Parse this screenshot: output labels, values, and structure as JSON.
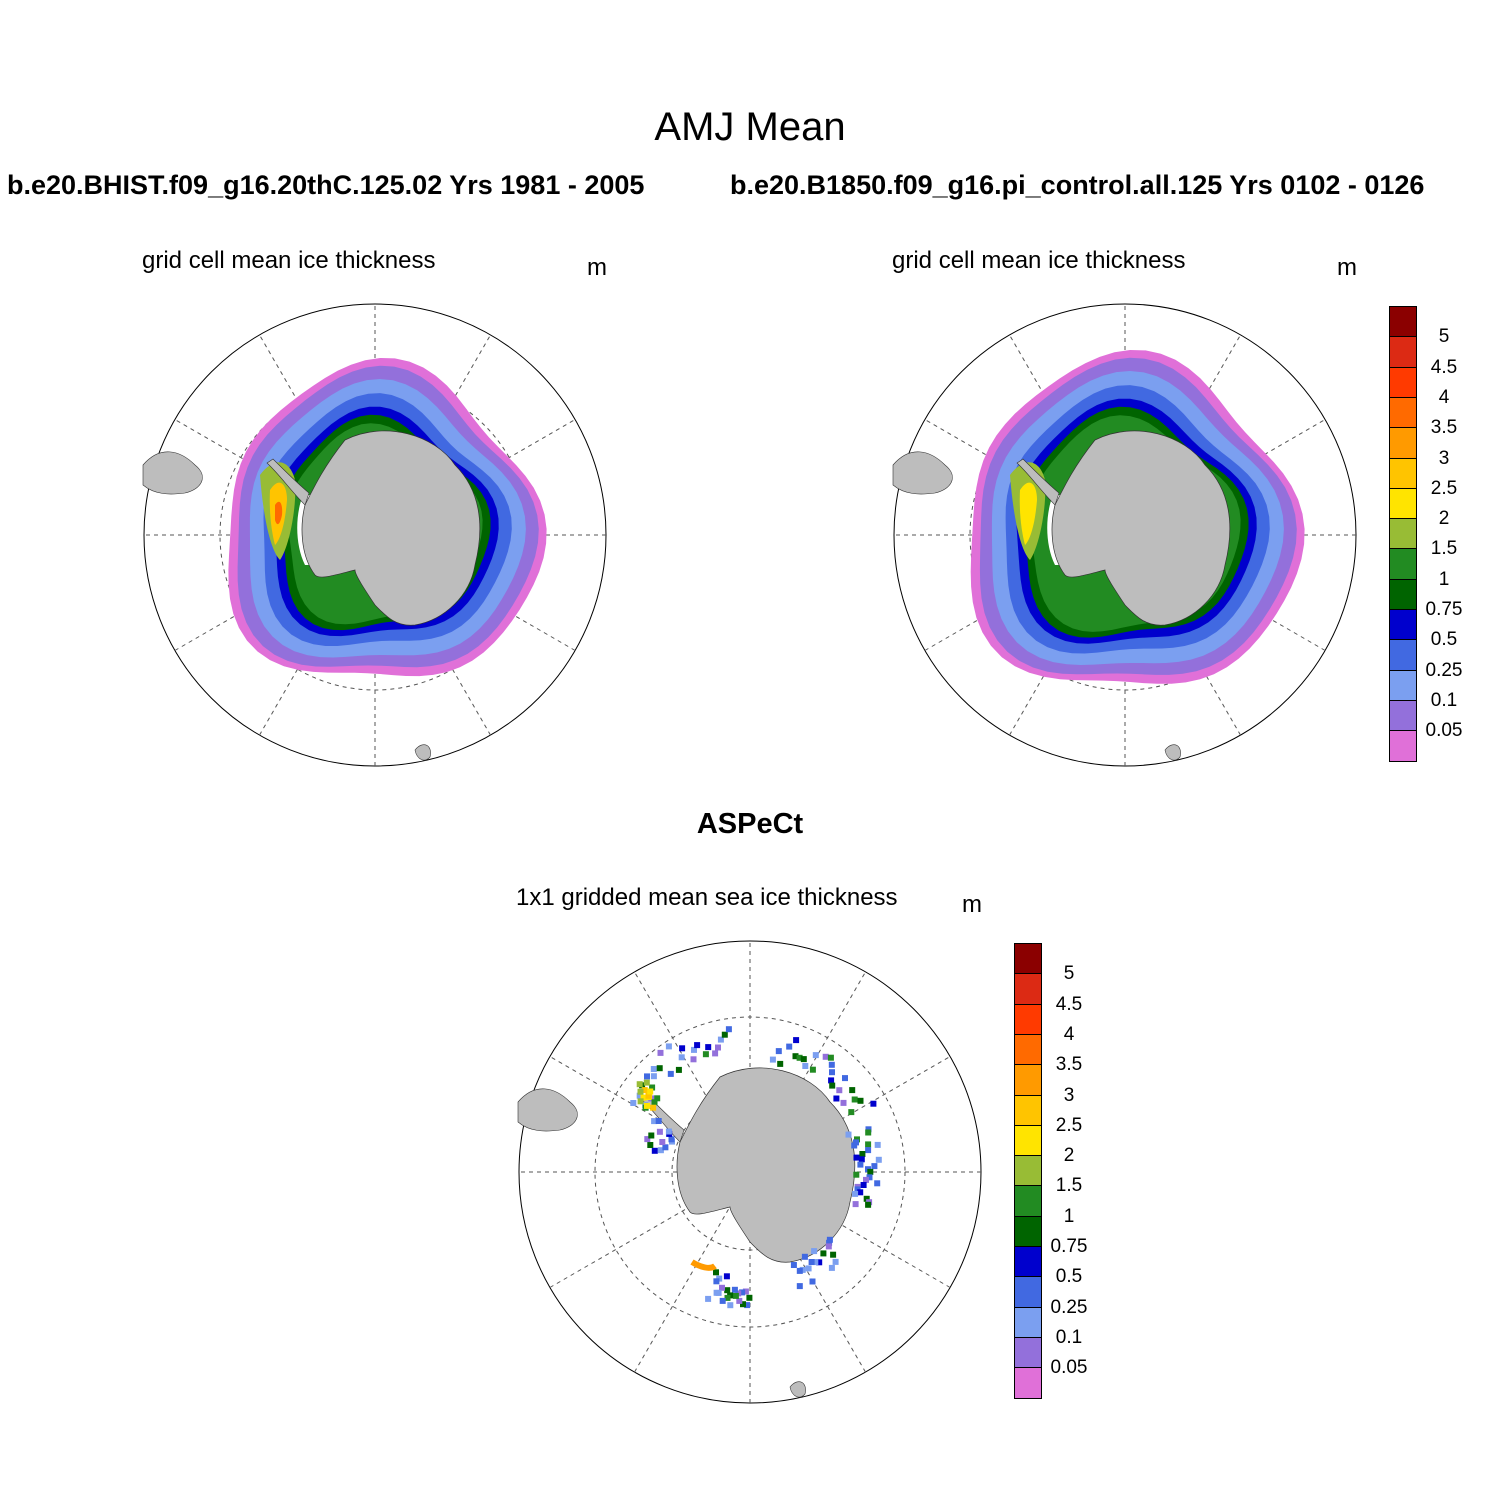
{
  "figure": {
    "title": "AMJ Mean",
    "panels": [
      {
        "case_title": "b.e20.BHIST.f09_g16.20thC.125.02  Yrs 1981 - 2005",
        "variable": "grid cell mean ice thickness",
        "units": "m"
      },
      {
        "case_title": "b.e20.B1850.f09_g16.pi_control.all.125  Yrs 0102 - 0126",
        "variable": "grid cell mean ice thickness",
        "units": "m"
      }
    ],
    "obs": {
      "title": "ASPeCt",
      "variable": "1x1 gridded mean sea ice thickness",
      "units": "m"
    },
    "colorbar": {
      "labels": [
        "5",
        "4.5",
        "4",
        "3.5",
        "3",
        "2.5",
        "2",
        "1.5",
        "1",
        "0.75",
        "0.5",
        "0.25",
        "0.1",
        "0.05"
      ],
      "colors": [
        "#8b0000",
        "#dc2a14",
        "#ff3a00",
        "#ff6a00",
        "#ff9a00",
        "#ffc400",
        "#ffe400",
        "#98bc35",
        "#228b22",
        "#006400",
        "#0000cd",
        "#4169e1",
        "#7b9ff0",
        "#9370db",
        "#e070d8"
      ]
    },
    "colors": {
      "land": "#bdbdbd",
      "ice_shelf": "#ffffff"
    }
  },
  "chart_data": {
    "type": "heatmap",
    "projection": "south polar stereographic",
    "season": "AMJ",
    "levels": [
      0.05,
      0.1,
      0.25,
      0.5,
      0.75,
      1,
      1.5,
      2,
      2.5,
      3,
      3.5,
      4,
      4.5,
      5
    ],
    "panels": [
      {
        "name": "b.e20.BHIST.f09_g16.20thC.125.02",
        "years": "1981 - 2005",
        "units": "m",
        "max_thickness_region": "Weddell Sea",
        "max_thickness_approx_m": 3
      },
      {
        "name": "b.e20.B1850.f09_g16.pi_control.all.125",
        "years": "0102 - 0126",
        "units": "m",
        "max_thickness_region": "Weddell Sea",
        "max_thickness_approx_m": 2.5
      },
      {
        "name": "ASPeCt",
        "units": "m",
        "coverage": "ship tracks"
      }
    ]
  }
}
